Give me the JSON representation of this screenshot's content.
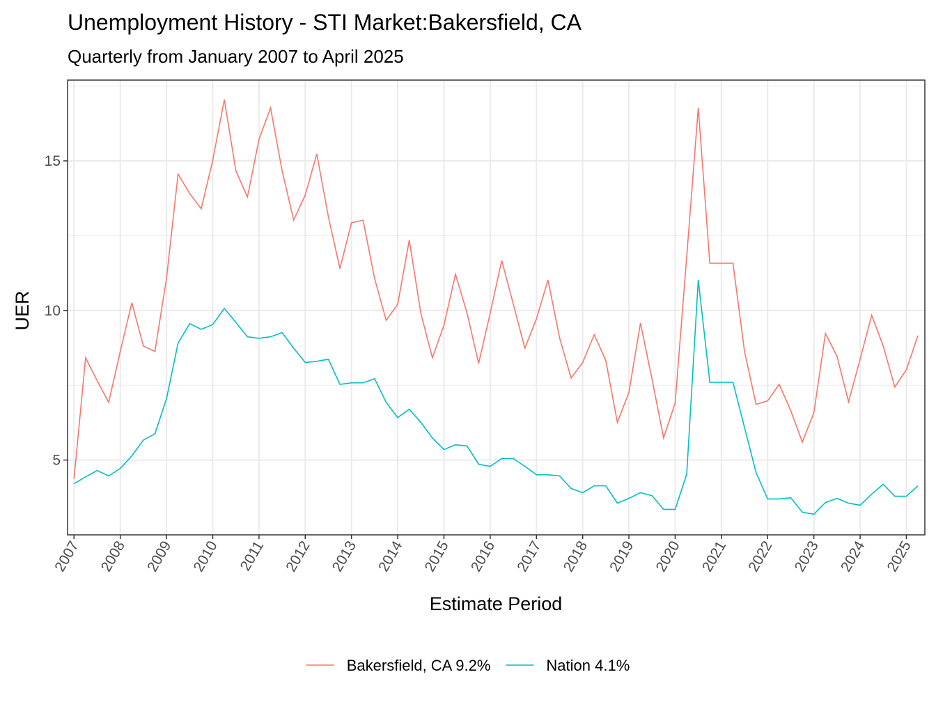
{
  "chart_data": {
    "type": "line",
    "title": "Unemployment History - STI Market:Bakersfield, CA",
    "subtitle": "Quarterly from January 2007 to April 2025",
    "x_label": "Estimate Period",
    "y_label": "UER",
    "x": [
      2007,
      2007.25,
      2007.5,
      2007.75,
      2008,
      2008.25,
      2008.5,
      2008.75,
      2009,
      2009.25,
      2009.5,
      2009.75,
      2010,
      2010.25,
      2010.5,
      2010.75,
      2011,
      2011.25,
      2011.5,
      2011.75,
      2012,
      2012.25,
      2012.5,
      2012.75,
      2013,
      2013.25,
      2013.5,
      2013.75,
      2014,
      2014.25,
      2014.5,
      2014.75,
      2015,
      2015.25,
      2015.5,
      2015.75,
      2016,
      2016.25,
      2016.5,
      2016.75,
      2017,
      2017.25,
      2017.5,
      2017.75,
      2018,
      2018.25,
      2018.5,
      2018.75,
      2019,
      2019.25,
      2019.5,
      2019.75,
      2020,
      2020.25,
      2020.5,
      2020.75,
      2021,
      2021.25,
      2021.5,
      2021.75,
      2022,
      2022.25,
      2022.5,
      2022.75,
      2023,
      2023.25,
      2023.5,
      2023.75,
      2024,
      2024.25,
      2024.5,
      2024.75,
      2025,
      2025.25
    ],
    "series": [
      {
        "name": "Bakersfield, CA 9.2%",
        "color": "#f8766d",
        "values": [
          4.37,
          8.42,
          7.65,
          6.93,
          8.63,
          10.26,
          8.81,
          8.63,
          11.07,
          14.56,
          13.91,
          13.4,
          15.02,
          17.05,
          14.67,
          13.79,
          15.72,
          16.77,
          14.67,
          13.02,
          13.86,
          15.23,
          13.14,
          11.4,
          12.93,
          13.02,
          11.07,
          9.67,
          10.21,
          12.35,
          9.91,
          8.42,
          9.51,
          11.21,
          9.91,
          8.23,
          9.91,
          11.67,
          10.21,
          8.74,
          9.72,
          11.02,
          9.09,
          7.74,
          8.26,
          9.19,
          8.33,
          6.26,
          7.26,
          9.58,
          7.7,
          5.74,
          6.91,
          11.8,
          16.77,
          11.58,
          11.58,
          11.58,
          8.63,
          6.86,
          6.98,
          7.53,
          6.65,
          5.6,
          6.58,
          9.23,
          8.47,
          6.95,
          8.37,
          9.84,
          8.81,
          7.44,
          8.02,
          9.16
        ]
      },
      {
        "name": "Nation 4.1%",
        "color": "#00bfc4",
        "values": [
          4.21,
          4.44,
          4.65,
          4.47,
          4.72,
          5.14,
          5.67,
          5.88,
          7.05,
          8.91,
          9.56,
          9.37,
          9.53,
          10.07,
          9.6,
          9.12,
          9.07,
          9.12,
          9.26,
          8.74,
          8.26,
          8.3,
          8.37,
          7.53,
          7.58,
          7.58,
          7.72,
          6.93,
          6.42,
          6.7,
          6.26,
          5.74,
          5.35,
          5.51,
          5.47,
          4.86,
          4.79,
          5.05,
          5.05,
          4.79,
          4.51,
          4.51,
          4.47,
          4.05,
          3.91,
          4.14,
          4.14,
          3.56,
          3.72,
          3.91,
          3.81,
          3.35,
          3.35,
          4.53,
          11.02,
          7.6,
          7.6,
          7.6,
          6.09,
          4.58,
          3.7,
          3.7,
          3.74,
          3.26,
          3.19,
          3.58,
          3.72,
          3.56,
          3.49,
          3.86,
          4.19,
          3.79,
          3.79,
          4.14
        ]
      }
    ],
    "xlim": [
      2006.86,
      2025.4
    ],
    "xticks": [
      2007,
      2008,
      2009,
      2010,
      2011,
      2012,
      2013,
      2014,
      2015,
      2016,
      2017,
      2018,
      2019,
      2020,
      2021,
      2022,
      2023,
      2024,
      2025
    ],
    "ylim": [
      2.5,
      17.7
    ],
    "yticks": [
      5,
      10,
      15
    ],
    "grid": true,
    "legend": "bottom"
  }
}
